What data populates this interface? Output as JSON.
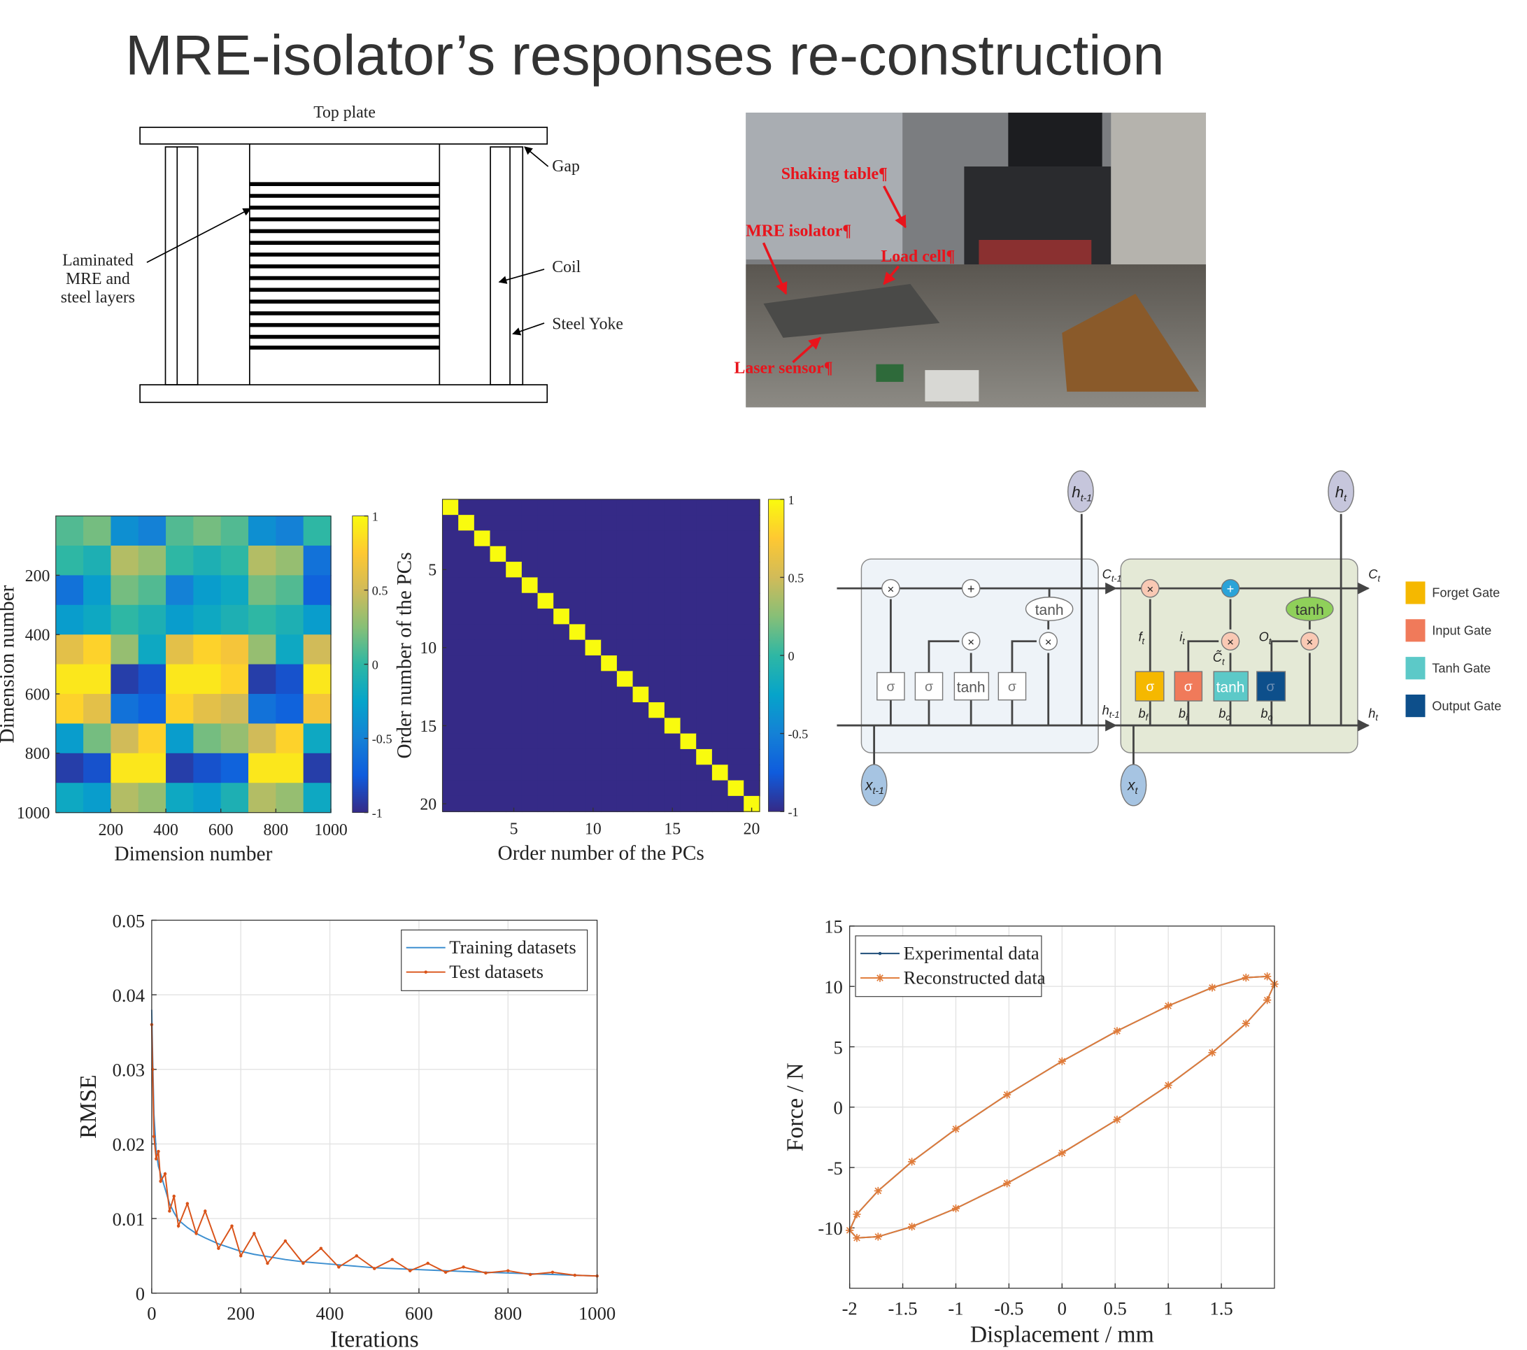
{
  "title": "MRE-isolator’s responses re-construction",
  "diagram": {
    "top_plate": "Top plate",
    "gap": "Gap",
    "layers": [
      "Laminated",
      "MRE and",
      "steel layers"
    ],
    "coil": "Coil",
    "yoke": "Steel Yoke"
  },
  "photo": {
    "labels": [
      "Shaking table¶",
      "MRE isolator¶",
      "Load cell¶",
      "Laser sensor¶"
    ]
  },
  "lstm": {
    "h_prev": {
      "base": "h",
      "sub": "t-1"
    },
    "h": {
      "base": "h",
      "sub": "t"
    },
    "c_prev": {
      "base": "C",
      "sub": "t-1"
    },
    "c": {
      "base": "C",
      "sub": "t"
    },
    "x_prev": {
      "base": "x",
      "sub": "t-1"
    },
    "x": {
      "base": "x",
      "sub": "t"
    },
    "tanh": "tanh",
    "sigma": "σ",
    "times": "×",
    "plus": "+",
    "f": {
      "base": "f",
      "sub": "t"
    },
    "i": {
      "base": "i",
      "sub": "t"
    },
    "ct": {
      "base": "C̃",
      "sub": "t"
    },
    "o": {
      "base": "O",
      "sub": "t"
    },
    "bf": {
      "base": "b",
      "sub": "f"
    },
    "bi": {
      "base": "b",
      "sub": "i"
    },
    "bc": {
      "base": "b",
      "sub": "c"
    },
    "bo": {
      "base": "b",
      "sub": "o"
    },
    "legend": [
      {
        "name": "Forget Gate",
        "color": "#f5b800"
      },
      {
        "name": "Input Gate",
        "color": "#f07a5a"
      },
      {
        "name": "Tanh Gate",
        "color": "#5cc9c8"
      },
      {
        "name": "Output Gate",
        "color": "#0d4f8b"
      }
    ]
  },
  "chart_data": [
    {
      "type": "heatmap",
      "xlabel": "Dimension number",
      "ylabel": "Dimension number",
      "xlim": [
        0,
        1000
      ],
      "ylim": [
        0,
        1000
      ],
      "yreverse": true,
      "xticks": [
        200,
        400,
        600,
        800,
        1000
      ],
      "yticks": [
        200,
        400,
        600,
        800,
        1000
      ],
      "clim": [
        -1,
        1
      ],
      "cticks": [
        1,
        0.5,
        0,
        -0.5,
        -1
      ],
      "values": [
        [
          0.1,
          0.2,
          -0.4,
          -0.5,
          0.1,
          0.2,
          0.1,
          -0.4,
          -0.5,
          0.0
        ],
        [
          0.0,
          -0.1,
          0.4,
          0.3,
          0.0,
          -0.1,
          0.0,
          0.4,
          0.3,
          -0.6
        ],
        [
          -0.6,
          -0.3,
          0.2,
          0.1,
          -0.5,
          -0.3,
          -0.2,
          0.2,
          0.1,
          -0.7
        ],
        [
          -0.3,
          -0.2,
          0.0,
          -0.1,
          -0.3,
          -0.2,
          -0.1,
          0.0,
          -0.1,
          -0.3
        ],
        [
          0.6,
          0.8,
          0.3,
          -0.2,
          0.6,
          0.8,
          0.7,
          0.3,
          -0.2,
          0.5
        ],
        [
          0.9,
          0.9,
          -0.9,
          -0.8,
          0.9,
          0.9,
          0.8,
          -0.9,
          -0.8,
          0.9
        ],
        [
          0.8,
          0.6,
          -0.6,
          -0.7,
          0.8,
          0.6,
          0.5,
          -0.6,
          -0.7,
          0.7
        ],
        [
          -0.3,
          0.2,
          0.5,
          0.8,
          -0.3,
          0.2,
          0.3,
          0.5,
          0.8,
          -0.2
        ],
        [
          -0.9,
          -0.8,
          0.9,
          0.9,
          -0.9,
          -0.8,
          -0.7,
          0.9,
          0.9,
          -0.9
        ],
        [
          -0.2,
          -0.3,
          0.4,
          0.3,
          -0.2,
          -0.3,
          -0.1,
          0.4,
          0.3,
          -0.2
        ]
      ]
    },
    {
      "type": "heatmap",
      "xlabel": "Order number of the PCs",
      "ylabel": "Order number of the PCs",
      "xlim": [
        0.5,
        20.5
      ],
      "ylim": [
        0.5,
        20.5
      ],
      "yreverse": true,
      "xticks": [
        5,
        10,
        15,
        20
      ],
      "yticks": [
        5,
        10,
        15,
        20
      ],
      "clim": [
        -1,
        1
      ],
      "cticks": [
        1,
        0.5,
        0,
        -0.5,
        -1
      ],
      "values": [
        [
          1,
          -1,
          -1,
          -1,
          -1,
          -1,
          -1,
          -1,
          -1,
          -1,
          -1,
          -1,
          -1,
          -1,
          -1,
          -1,
          -1,
          -1,
          -1,
          -1
        ],
        [
          -1,
          1,
          -1,
          -1,
          -1,
          -1,
          -1,
          -1,
          -1,
          -1,
          -1,
          -1,
          -1,
          -1,
          -1,
          -1,
          -1,
          -1,
          -1,
          -1
        ],
        [
          -1,
          -1,
          1,
          -1,
          -1,
          -1,
          -1,
          -1,
          -1,
          -1,
          -1,
          -1,
          -1,
          -1,
          -1,
          -1,
          -1,
          -1,
          -1,
          -1
        ],
        [
          -1,
          -1,
          -1,
          1,
          -1,
          -1,
          -1,
          -1,
          -1,
          -1,
          -1,
          -1,
          -1,
          -1,
          -1,
          -1,
          -1,
          -1,
          -1,
          -1
        ],
        [
          -1,
          -1,
          -1,
          -1,
          1,
          -1,
          -1,
          -1,
          -1,
          -1,
          -1,
          -1,
          -1,
          -1,
          -1,
          -1,
          -1,
          -1,
          -1,
          -1
        ],
        [
          -1,
          -1,
          -1,
          -1,
          -1,
          1,
          -1,
          -1,
          -1,
          -1,
          -1,
          -1,
          -1,
          -1,
          -1,
          -1,
          -1,
          -1,
          -1,
          -1
        ],
        [
          -1,
          -1,
          -1,
          -1,
          -1,
          -1,
          1,
          -1,
          -1,
          -1,
          -1,
          -1,
          -1,
          -1,
          -1,
          -1,
          -1,
          -1,
          -1,
          -1
        ],
        [
          -1,
          -1,
          -1,
          -1,
          -1,
          -1,
          -1,
          1,
          -1,
          -1,
          -1,
          -1,
          -1,
          -1,
          -1,
          -1,
          -1,
          -1,
          -1,
          -1
        ],
        [
          -1,
          -1,
          -1,
          -1,
          -1,
          -1,
          -1,
          -1,
          1,
          -1,
          -1,
          -1,
          -1,
          -1,
          -1,
          -1,
          -1,
          -1,
          -1,
          -1
        ],
        [
          -1,
          -1,
          -1,
          -1,
          -1,
          -1,
          -1,
          -1,
          -1,
          1,
          -1,
          -1,
          -1,
          -1,
          -1,
          -1,
          -1,
          -1,
          -1,
          -1
        ],
        [
          -1,
          -1,
          -1,
          -1,
          -1,
          -1,
          -1,
          -1,
          -1,
          -1,
          1,
          -1,
          -1,
          -1,
          -1,
          -1,
          -1,
          -1,
          -1,
          -1
        ],
        [
          -1,
          -1,
          -1,
          -1,
          -1,
          -1,
          -1,
          -1,
          -1,
          -1,
          -1,
          1,
          -1,
          -1,
          -1,
          -1,
          -1,
          -1,
          -1,
          -1
        ],
        [
          -1,
          -1,
          -1,
          -1,
          -1,
          -1,
          -1,
          -1,
          -1,
          -1,
          -1,
          -1,
          1,
          -1,
          -1,
          -1,
          -1,
          -1,
          -1,
          -1
        ],
        [
          -1,
          -1,
          -1,
          -1,
          -1,
          -1,
          -1,
          -1,
          -1,
          -1,
          -1,
          -1,
          -1,
          1,
          -1,
          -1,
          -1,
          -1,
          -1,
          -1
        ],
        [
          -1,
          -1,
          -1,
          -1,
          -1,
          -1,
          -1,
          -1,
          -1,
          -1,
          -1,
          -1,
          -1,
          -1,
          1,
          -1,
          -1,
          -1,
          -1,
          -1
        ],
        [
          -1,
          -1,
          -1,
          -1,
          -1,
          -1,
          -1,
          -1,
          -1,
          -1,
          -1,
          -1,
          -1,
          -1,
          -1,
          1,
          -1,
          -1,
          -1,
          -1
        ],
        [
          -1,
          -1,
          -1,
          -1,
          -1,
          -1,
          -1,
          -1,
          -1,
          -1,
          -1,
          -1,
          -1,
          -1,
          -1,
          -1,
          1,
          -1,
          -1,
          -1
        ],
        [
          -1,
          -1,
          -1,
          -1,
          -1,
          -1,
          -1,
          -1,
          -1,
          -1,
          -1,
          -1,
          -1,
          -1,
          -1,
          -1,
          -1,
          1,
          -1,
          -1
        ],
        [
          -1,
          -1,
          -1,
          -1,
          -1,
          -1,
          -1,
          -1,
          -1,
          -1,
          -1,
          -1,
          -1,
          -1,
          -1,
          -1,
          -1,
          -1,
          1,
          -1
        ],
        [
          -1,
          -1,
          -1,
          -1,
          -1,
          -1,
          -1,
          -1,
          -1,
          -1,
          -1,
          -1,
          -1,
          -1,
          -1,
          -1,
          -1,
          -1,
          -1,
          1
        ]
      ]
    },
    {
      "type": "line",
      "xlabel": "Iterations",
      "ylabel": "RMSE",
      "xlim": [
        0,
        1000
      ],
      "ylim": [
        0,
        0.05
      ],
      "xticks": [
        0,
        200,
        400,
        600,
        800,
        1000
      ],
      "yticks": [
        0,
        0.01,
        0.02,
        0.03,
        0.04,
        0.05
      ],
      "grid": true,
      "legend": "upper right",
      "x": [
        0,
        2,
        5,
        10,
        15,
        20,
        30,
        40,
        50,
        60,
        80,
        100,
        120,
        150,
        180,
        200,
        230,
        260,
        300,
        340,
        380,
        420,
        460,
        500,
        540,
        580,
        620,
        660,
        700,
        750,
        800,
        850,
        900,
        950,
        1000
      ],
      "series": [
        {
          "name": "Training datasets",
          "color": "#3d8fd0",
          "marker": "none",
          "values": [
            0.038,
            0.032,
            0.024,
            0.019,
            0.017,
            0.016,
            0.014,
            0.012,
            0.0108,
            0.0098,
            0.0088,
            0.008,
            0.0074,
            0.0066,
            0.006,
            0.0056,
            0.0052,
            0.0049,
            0.0045,
            0.0042,
            0.004,
            0.0038,
            0.0036,
            0.0034,
            0.0033,
            0.0032,
            0.0031,
            0.003,
            0.0029,
            0.0028,
            0.0027,
            0.0026,
            0.0025,
            0.0024,
            0.0023
          ]
        },
        {
          "name": "Test datasets",
          "color": "#d95319",
          "marker": "dot",
          "values": [
            0.036,
            0.03,
            0.021,
            0.018,
            0.019,
            0.015,
            0.016,
            0.011,
            0.013,
            0.009,
            0.012,
            0.008,
            0.011,
            0.006,
            0.009,
            0.005,
            0.008,
            0.004,
            0.007,
            0.004,
            0.006,
            0.0035,
            0.005,
            0.0033,
            0.0045,
            0.003,
            0.004,
            0.0028,
            0.0035,
            0.0027,
            0.003,
            0.0025,
            0.0028,
            0.0024,
            0.0023
          ]
        }
      ]
    },
    {
      "type": "line",
      "xlabel": "Displacement / mm",
      "ylabel": "Force / N",
      "xlim": [
        -2,
        2
      ],
      "ylim": [
        -15,
        15
      ],
      "xticks": [
        -2,
        -1.5,
        -1,
        -0.5,
        0,
        0.5,
        1,
        1.5
      ],
      "yticks": [
        -10,
        -5,
        0,
        5,
        10,
        15
      ],
      "grid": true,
      "legend": "upper left",
      "x": [
        2,
        1.932,
        1.732,
        1.414,
        1,
        0.518,
        0,
        -0.518,
        -1,
        -1.414,
        -1.732,
        -1.932,
        -2,
        -1.932,
        -1.732,
        -1.414,
        -1,
        -0.518,
        0,
        0.518,
        1,
        1.414,
        1.732,
        1.932,
        2
      ],
      "series": [
        {
          "name": "Experimental data",
          "color": "#1f4e79",
          "marker": "dot",
          "values": [
            10.2,
            10.83,
            10.73,
            9.9,
            8.39,
            6.31,
            3.8,
            1.03,
            -1.81,
            -4.52,
            -6.93,
            -8.87,
            -10.2,
            -10.83,
            -10.73,
            -9.9,
            -8.39,
            -6.31,
            -3.8,
            -1.03,
            1.81,
            4.52,
            6.93,
            8.87,
            10.2
          ]
        },
        {
          "name": "Reconstructed data",
          "color": "#e07b39",
          "marker": "asterisk",
          "values": [
            10.2,
            10.83,
            10.73,
            9.9,
            8.39,
            6.31,
            3.8,
            1.03,
            -1.81,
            -4.52,
            -6.93,
            -8.87,
            -10.2,
            -10.83,
            -10.73,
            -9.9,
            -8.39,
            -6.31,
            -3.8,
            -1.03,
            1.81,
            4.52,
            6.93,
            8.87,
            10.2
          ]
        }
      ]
    }
  ]
}
